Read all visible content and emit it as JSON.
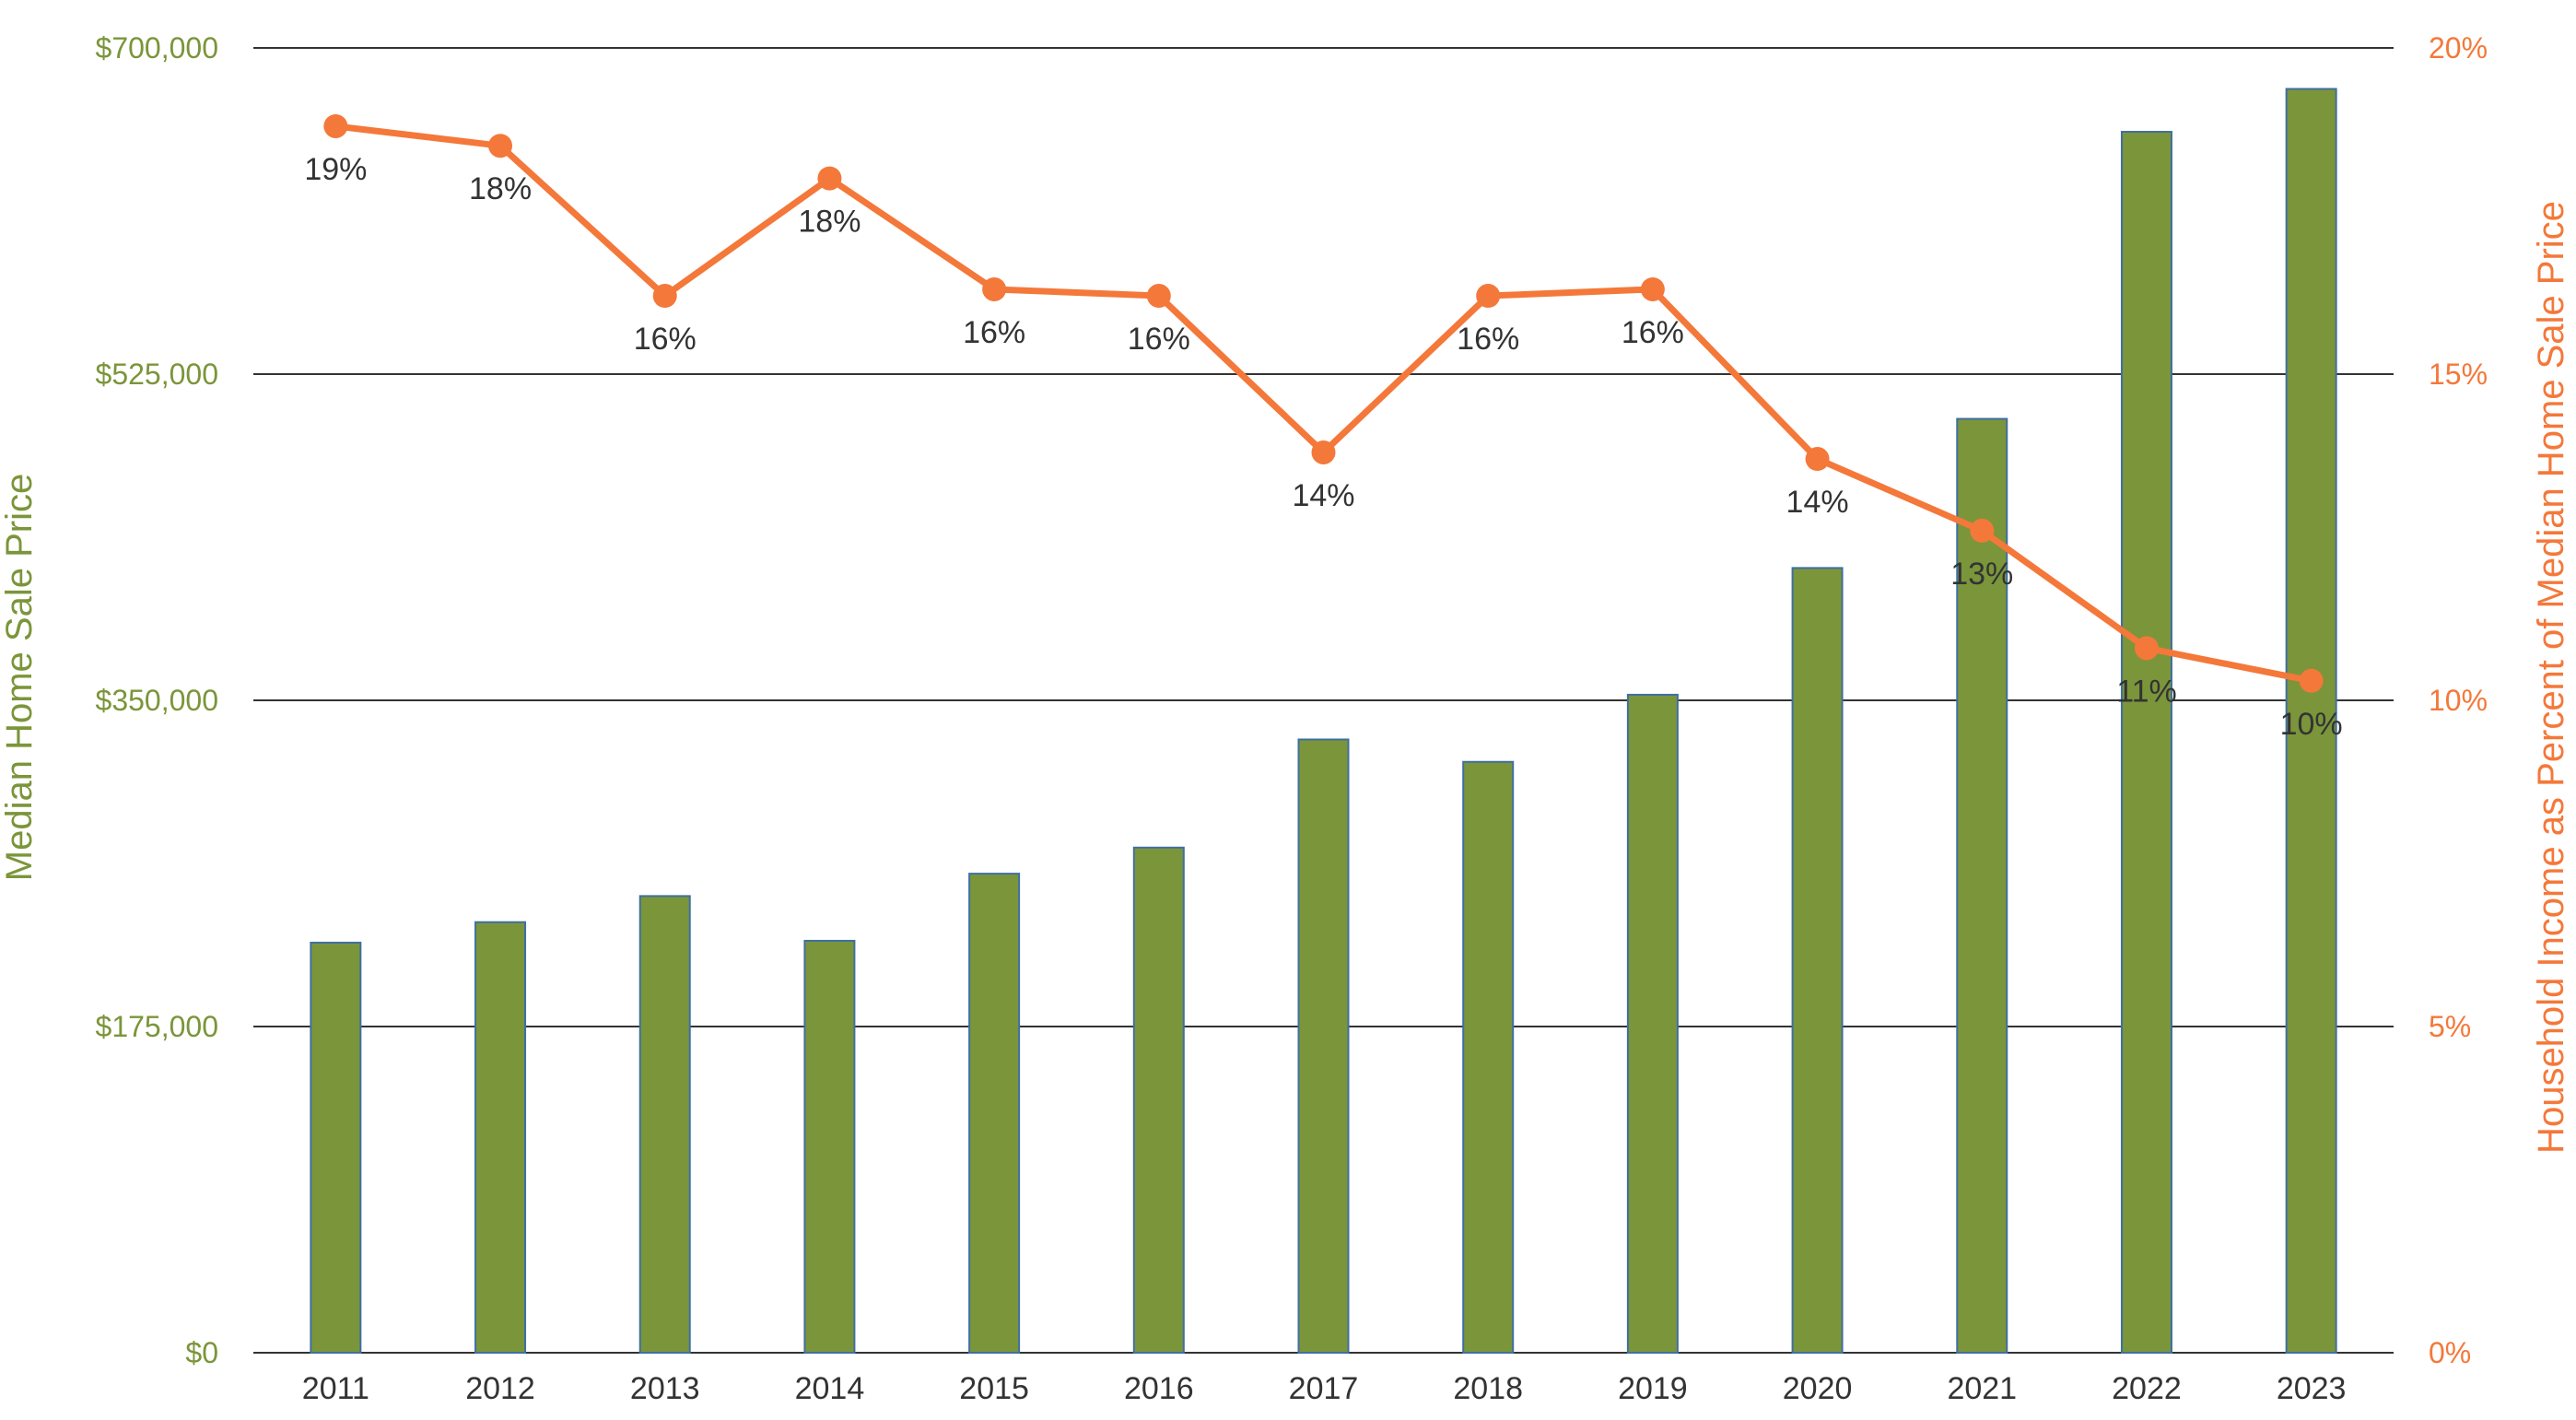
{
  "colors": {
    "bar_fill": "#7b953a",
    "bar_edge": "#3f6fa0",
    "line": "#f4783a",
    "left_axis_text": "#7b953a",
    "right_axis_text": "#f4783a",
    "grid": "#333333"
  },
  "chart_data": {
    "type": "bar+line",
    "categories": [
      "2011",
      "2012",
      "2013",
      "2014",
      "2015",
      "2016",
      "2017",
      "2018",
      "2019",
      "2020",
      "2021",
      "2022",
      "2023"
    ],
    "series": [
      {
        "name": "Median Home Sale Price",
        "type": "bar",
        "axis": "left",
        "values": [
          220000,
          231000,
          245000,
          221000,
          257000,
          271000,
          329000,
          317000,
          353000,
          421000,
          501000,
          655000,
          678000
        ]
      },
      {
        "name": "Household Income as Percent of Median Home Sale Price",
        "type": "line",
        "axis": "right",
        "values": [
          18.8,
          18.5,
          16.2,
          18.0,
          16.3,
          16.2,
          13.8,
          16.2,
          16.3,
          13.7,
          12.6,
          10.8,
          10.3
        ],
        "labels": [
          "19%",
          "18%",
          "16%",
          "18%",
          "16%",
          "16%",
          "14%",
          "16%",
          "16%",
          "14%",
          "13%",
          "11%",
          "10%"
        ]
      }
    ],
    "left_axis": {
      "title": "Median Home Sale Price",
      "range": [
        0,
        700000
      ],
      "ticks": [
        0,
        175000,
        350000,
        525000,
        700000
      ],
      "tick_labels": [
        "$0",
        "$175,000",
        "$350,000",
        "$525,000",
        "$700,000"
      ]
    },
    "right_axis": {
      "title": "Household Income as Percent of Median Home Sale Price",
      "range": [
        0,
        20
      ],
      "ticks": [
        0,
        5,
        10,
        15,
        20
      ],
      "tick_labels": [
        "0%",
        "5%",
        "10%",
        "15%",
        "20%"
      ]
    },
    "grid": true
  }
}
